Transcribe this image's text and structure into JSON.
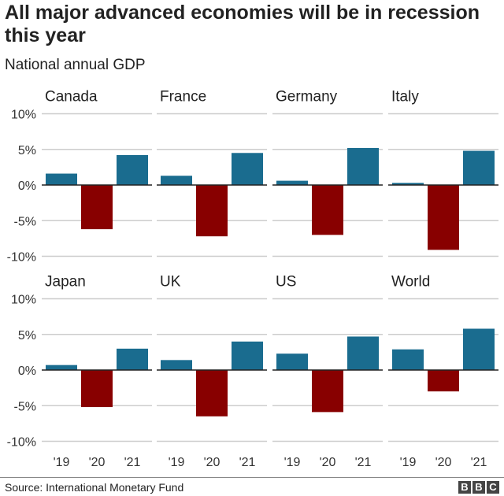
{
  "title": "All major advanced economies will be in recession this year",
  "subtitle": "National annual GDP",
  "source": "Source: International Monetary Fund",
  "logo": "BBC",
  "colors": {
    "positive": "#1a6c8f",
    "negative": "#880000",
    "grid": "#cccccc",
    "zero": "#222222"
  },
  "chart_data": {
    "type": "bar",
    "layout": "small-multiples 4x2",
    "categories": [
      "'19",
      "'20",
      "'21"
    ],
    "yticks": [
      "10%",
      "5%",
      "0%",
      "-5%",
      "-10%"
    ],
    "ylim": [
      -10,
      10
    ],
    "grid": true,
    "series": [
      {
        "name": "Canada",
        "values": [
          1.6,
          -6.2,
          4.2
        ]
      },
      {
        "name": "France",
        "values": [
          1.3,
          -7.2,
          4.5
        ]
      },
      {
        "name": "Germany",
        "values": [
          0.6,
          -7.0,
          5.2
        ]
      },
      {
        "name": "Italy",
        "values": [
          0.3,
          -9.1,
          4.8
        ]
      },
      {
        "name": "Japan",
        "values": [
          0.7,
          -5.2,
          3.0
        ]
      },
      {
        "name": "UK",
        "values": [
          1.4,
          -6.5,
          4.0
        ]
      },
      {
        "name": "US",
        "values": [
          2.3,
          -5.9,
          4.7
        ]
      },
      {
        "name": "World",
        "values": [
          2.9,
          -3.0,
          5.8
        ]
      }
    ]
  }
}
